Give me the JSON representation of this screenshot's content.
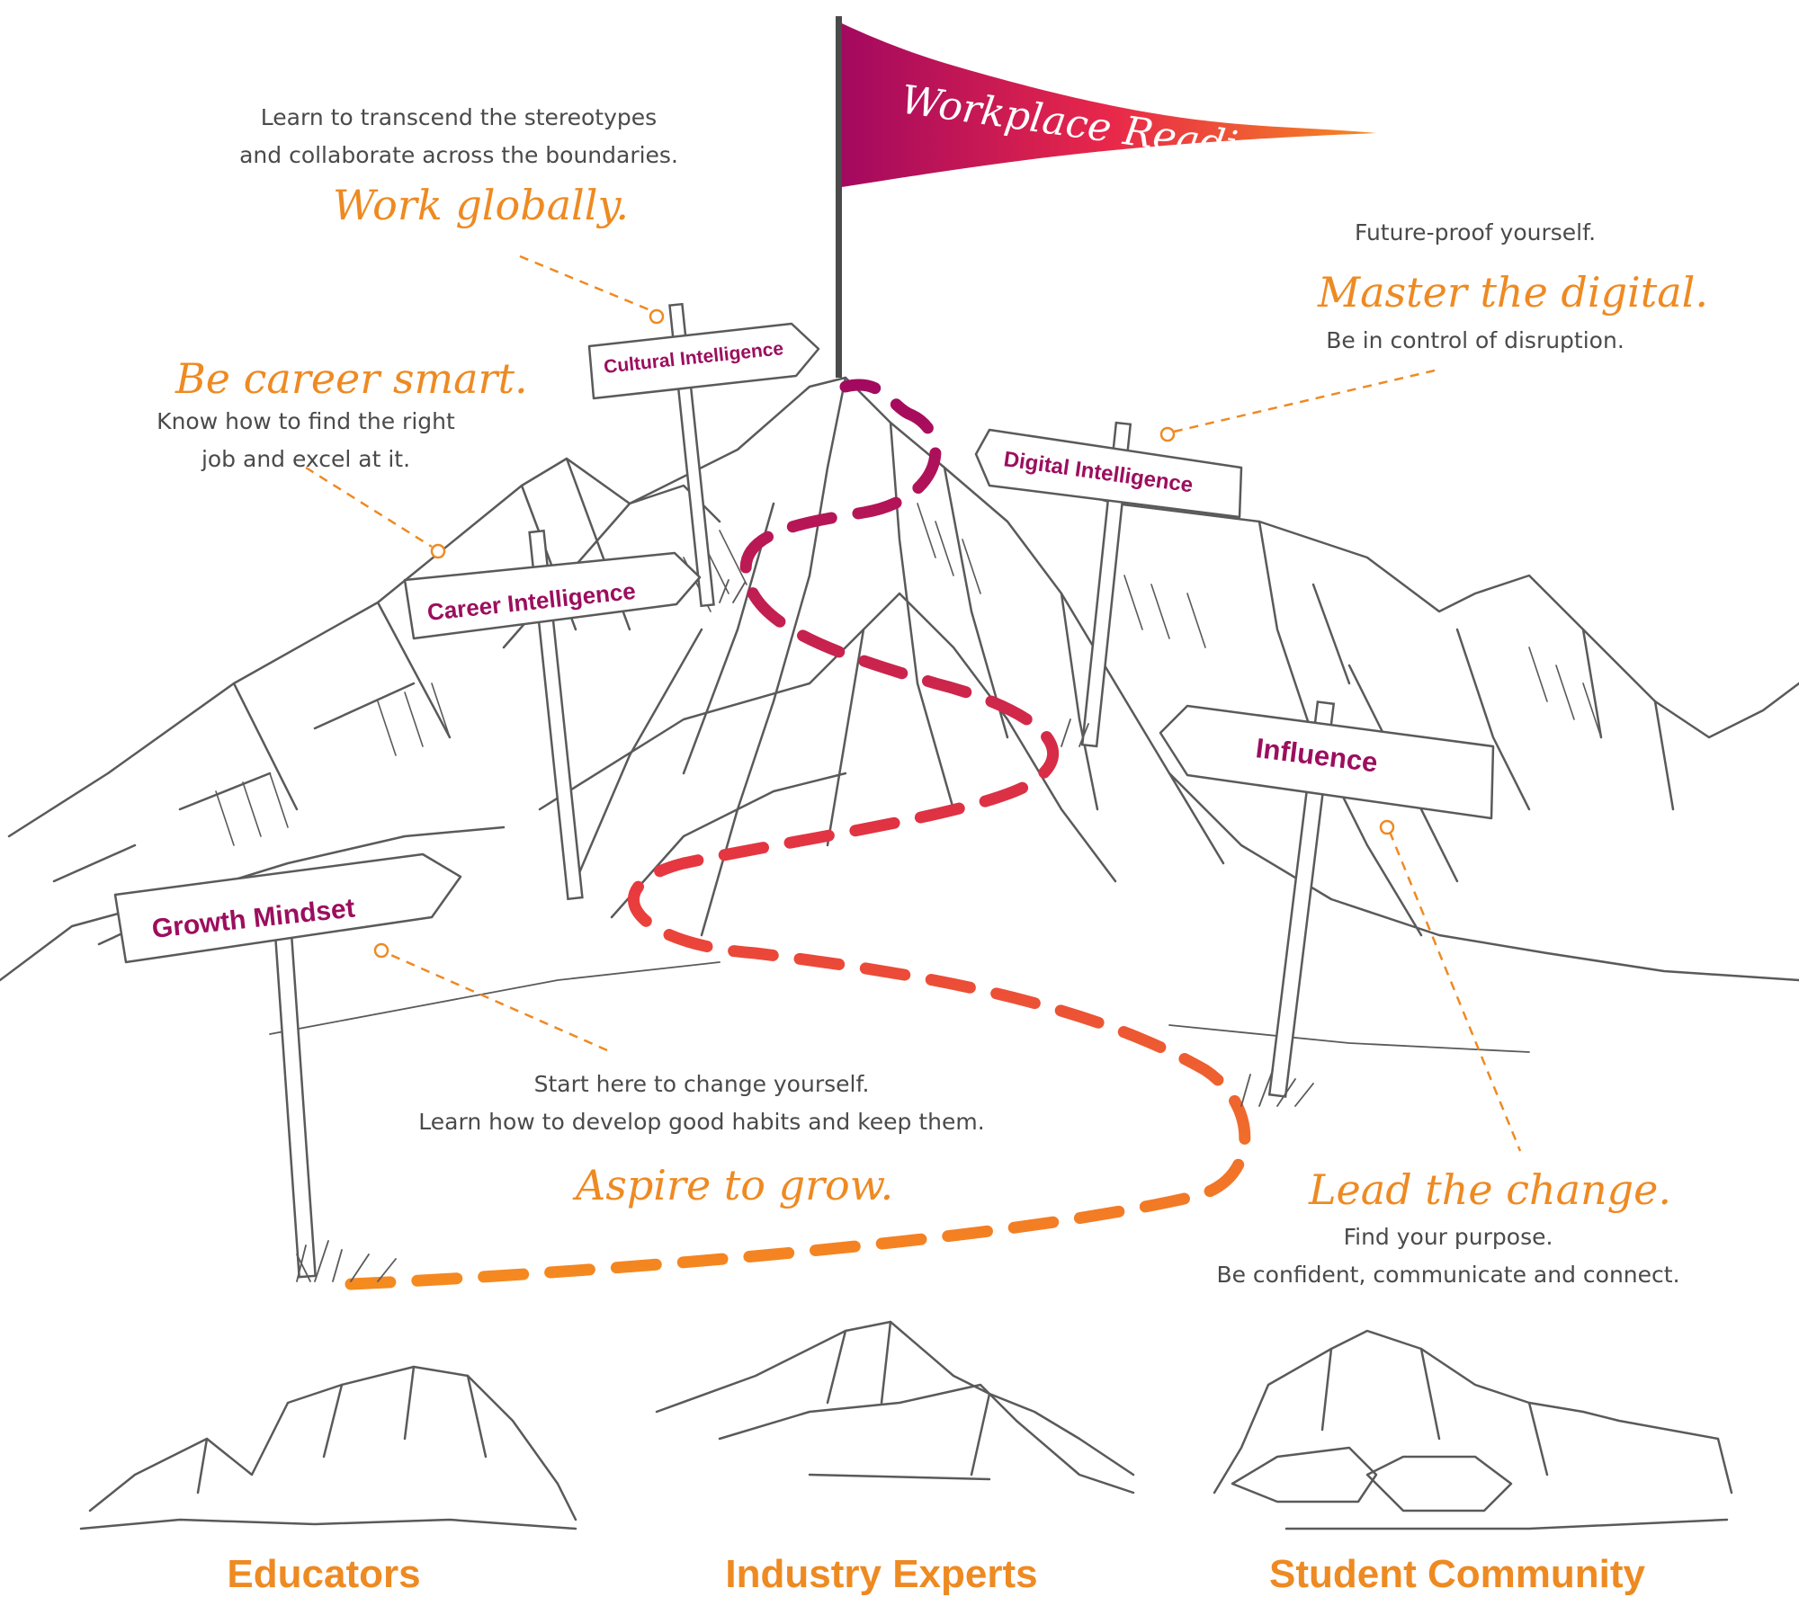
{
  "flag": {
    "title": "Workplace Readiness",
    "gradient_start": "#a3095f",
    "gradient_mid": "#e8274a",
    "gradient_end": "#f58a1f"
  },
  "colors": {
    "accent_orange": "#ee8a22",
    "sign_text": "#9c0e5e",
    "body_text": "#4a4a4a",
    "sketch": "#5a5a5a"
  },
  "signposts": {
    "cultural": "Cultural Intelligence",
    "career": "Career Intelligence",
    "digital": "Digital Intelligence",
    "influence": "Influence",
    "growth": "Growth Mindset"
  },
  "callouts": {
    "work_globally": {
      "description_line1": "Learn to transcend the stereotypes",
      "description_line2": "and collaborate across the boundaries.",
      "slogan": "Work globally."
    },
    "career_smart": {
      "slogan": "Be career smart.",
      "description_line1": "Know how to find the right",
      "description_line2": "job and excel at it."
    },
    "digital": {
      "intro": "Future-proof yourself.",
      "slogan": "Master the digital.",
      "description": "Be in control of disruption."
    },
    "grow": {
      "description_line1": "Start here to change yourself.",
      "description_line2": "Learn how to develop good habits and keep them.",
      "slogan": "Aspire to grow."
    },
    "lead": {
      "slogan": "Lead the change.",
      "description_line1": "Find your purpose.",
      "description_line2": "Be confident, communicate and connect."
    }
  },
  "bottom_labels": {
    "educators": "Educators",
    "industry_experts": "Industry Experts",
    "student_community": "Student Community"
  }
}
